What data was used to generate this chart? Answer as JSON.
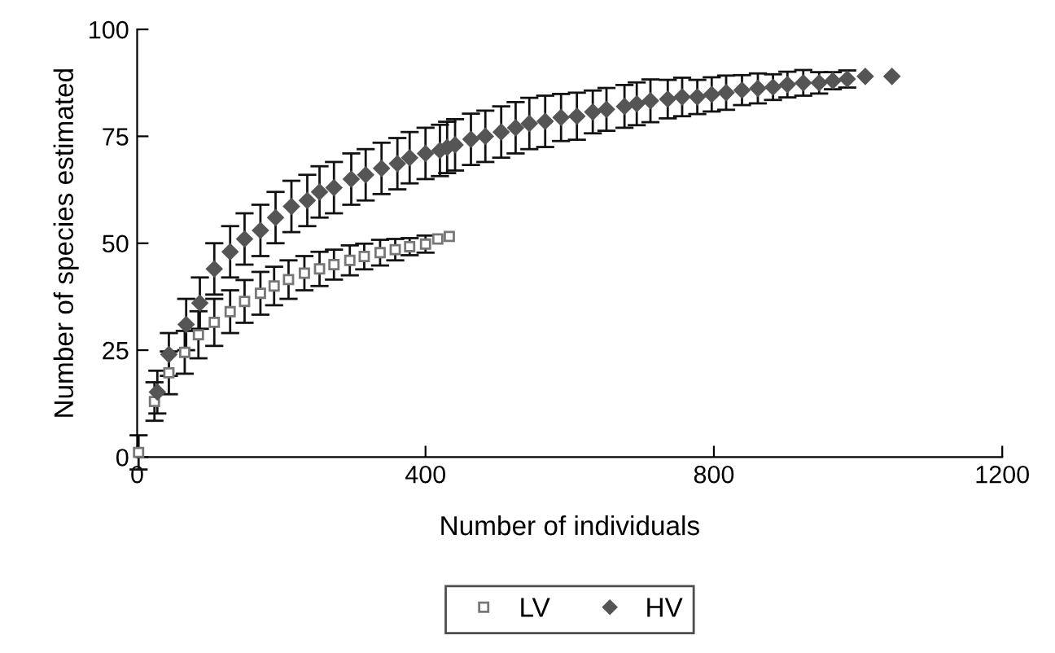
{
  "chart_data": {
    "type": "scatter",
    "xlabel": "Number of individuals",
    "ylabel": "Number of species estimated",
    "xlim": [
      0,
      1200
    ],
    "ylim": [
      0,
      100
    ],
    "xticks": [
      0,
      400,
      800,
      1200
    ],
    "yticks": [
      0,
      25,
      50,
      75,
      100
    ],
    "grid": false,
    "legend": "bottom",
    "series": [
      {
        "name": "LV",
        "color": "#ffffff",
        "marker": "square",
        "x": [
          2,
          24,
          44,
          66,
          85,
          107,
          129,
          149,
          171,
          190,
          210,
          232,
          253,
          273,
          295,
          315,
          337,
          358,
          378,
          400,
          417,
          433
        ],
        "values": [
          1.1,
          13,
          19.7,
          24.5,
          28.6,
          31.5,
          34,
          36.4,
          38.3,
          40,
          41.5,
          43,
          44,
          45,
          46,
          46.9,
          47.8,
          48.5,
          49.2,
          49.8,
          51,
          51.6
        ],
        "errors": [
          4,
          4.5,
          5,
          5,
          5.5,
          5.5,
          5,
          5,
          5,
          4.5,
          4.5,
          4,
          4,
          3.5,
          3.5,
          3,
          3,
          2.5,
          2,
          2,
          null,
          null
        ]
      },
      {
        "name": "HV",
        "color": "#555555",
        "marker": "diamond",
        "x": [
          28,
          44,
          68,
          87,
          107,
          129,
          149,
          171,
          192,
          214,
          236,
          253,
          273,
          297,
          317,
          339,
          361,
          378,
          400,
          420,
          430,
          441,
          463,
          483,
          505,
          525,
          544,
          566,
          588,
          610,
          632,
          651,
          676,
          693,
          712,
          736,
          756,
          777,
          797,
          817,
          839,
          861,
          882,
          902,
          924,
          946,
          965,
          985,
          1010,
          1047
        ],
        "values": [
          15.2,
          24,
          31,
          36,
          44,
          48,
          51,
          53,
          56,
          58.6,
          60,
          62,
          63,
          65,
          66,
          67.5,
          68.6,
          70,
          71,
          71.7,
          72.4,
          73,
          74.3,
          75,
          76,
          77,
          78,
          78.5,
          79.4,
          79.7,
          80.7,
          81.3,
          82,
          82.6,
          83.3,
          83.7,
          84.2,
          84.2,
          84.8,
          85.2,
          85.8,
          86.2,
          86.5,
          87.1,
          87.5,
          87.5,
          88,
          88.4,
          89,
          89
        ],
        "errors": [
          5,
          5,
          6,
          6,
          6,
          6,
          6,
          6,
          6,
          6,
          6,
          6,
          6,
          6,
          6,
          6,
          6,
          6,
          6,
          6,
          6,
          6,
          6,
          6,
          6,
          6,
          6,
          6,
          5.5,
          5.5,
          5,
          5,
          5,
          5,
          5,
          4.5,
          4.5,
          4,
          4,
          4,
          3.5,
          3.5,
          3,
          3,
          3,
          2.5,
          2,
          2,
          null,
          null
        ]
      }
    ]
  }
}
